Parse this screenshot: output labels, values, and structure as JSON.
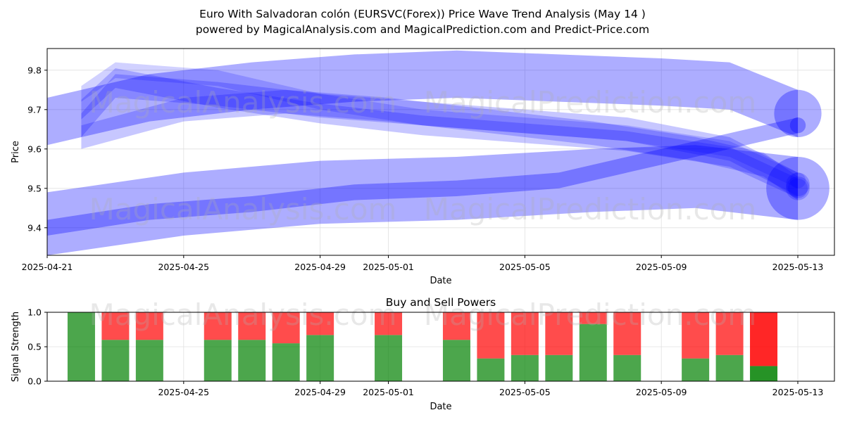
{
  "header": {
    "title_line1": "Euro With Salvadoran colón (EURSVC(Forex)) Price Wave Trend Analysis (May 14 )",
    "title_line2": "powered by MagicalAnalysis.com and MagicalPrediction.com and Predict-Price.com"
  },
  "watermarks": [
    "MagicalAnalysis.com",
    "MagicalPrediction.com"
  ],
  "colors": {
    "wave": "#0000ff",
    "buy": "#008000",
    "sell": "#ff0000",
    "grid": "#e0e0e0"
  },
  "chart_data": [
    {
      "type": "area",
      "title": "",
      "xlabel": "Date",
      "ylabel": "Price",
      "x_ticks": [
        "2025-04-21",
        "2025-04-25",
        "2025-04-29",
        "2025-05-01",
        "2025-05-05",
        "2025-05-09",
        "2025-05-13"
      ],
      "y_ticks": [
        "9.4",
        "9.5",
        "9.6",
        "9.7",
        "9.8"
      ],
      "xlim": [
        "2025-04-21",
        "2025-05-13"
      ],
      "ylim": [
        9.33,
        9.855
      ],
      "grid": true,
      "series": [
        {
          "x": [
            "2025-04-21",
            "2025-04-24",
            "2025-04-27",
            "2025-04-30",
            "2025-05-03",
            "2025-05-06",
            "2025-05-09",
            "2025-05-11",
            "2025-05-13"
          ],
          "center": [
            9.67,
            9.73,
            9.76,
            9.78,
            9.79,
            9.78,
            9.77,
            9.76,
            9.69
          ],
          "band": 0.06
        },
        {
          "x": [
            "2025-04-21",
            "2025-04-24",
            "2025-04-27",
            "2025-04-30",
            "2025-05-03",
            "2025-05-06",
            "2025-05-09",
            "2025-05-11",
            "2025-05-13"
          ],
          "center": [
            9.4,
            9.44,
            9.46,
            9.49,
            9.5,
            9.52,
            9.58,
            9.62,
            9.66
          ],
          "band": 0.02
        },
        {
          "x": [
            "2025-04-21",
            "2025-04-25",
            "2025-04-29",
            "2025-05-03",
            "2025-05-07",
            "2025-05-10",
            "2025-05-13"
          ],
          "center": [
            9.41,
            9.46,
            9.49,
            9.5,
            9.52,
            9.53,
            9.5
          ],
          "band": 0.08
        },
        {
          "x": [
            "2025-04-22",
            "2025-04-23",
            "2025-04-26",
            "2025-04-29",
            "2025-05-02",
            "2025-05-05",
            "2025-05-08",
            "2025-05-11",
            "2025-05-13"
          ],
          "center": [
            9.66,
            9.76,
            9.74,
            9.71,
            9.69,
            9.67,
            9.65,
            9.6,
            9.51
          ],
          "band": 0.03
        },
        {
          "x": [
            "2025-04-22",
            "2025-04-23",
            "2025-04-26",
            "2025-04-29",
            "2025-05-02",
            "2025-05-05",
            "2025-05-08",
            "2025-05-11",
            "2025-05-13"
          ],
          "center": [
            9.7,
            9.78,
            9.73,
            9.69,
            9.66,
            9.64,
            9.62,
            9.58,
            9.5
          ],
          "band": 0.025
        },
        {
          "x": [
            "2025-04-22",
            "2025-04-23",
            "2025-04-26",
            "2025-04-29",
            "2025-05-02",
            "2025-05-05",
            "2025-05-08",
            "2025-05-11",
            "2025-05-13"
          ],
          "center": [
            9.74,
            9.8,
            9.78,
            9.72,
            9.68,
            9.66,
            9.64,
            9.6,
            9.52
          ],
          "band": 0.02
        },
        {
          "x": [
            "2025-04-22",
            "2025-04-25",
            "2025-04-28",
            "2025-05-01",
            "2025-05-04",
            "2025-05-07",
            "2025-05-10",
            "2025-05-12",
            "2025-05-13"
          ],
          "center": [
            9.63,
            9.7,
            9.72,
            9.7,
            9.67,
            9.64,
            9.6,
            9.56,
            9.5
          ],
          "band": 0.03
        }
      ]
    },
    {
      "type": "bar",
      "title": "Buy and Sell Powers",
      "xlabel": "Date",
      "ylabel": "Signal Strength",
      "x_ticks": [
        "2025-04-25",
        "2025-04-29",
        "2025-05-01",
        "2025-05-05",
        "2025-05-09",
        "2025-05-13"
      ],
      "y_ticks": [
        "0.0",
        "0.5",
        "1.0"
      ],
      "ylim": [
        0,
        1
      ],
      "categories": [
        "2025-04-22",
        "2025-04-23",
        "2025-04-24",
        "2025-04-26",
        "2025-04-27",
        "2025-04-28",
        "2025-04-29",
        "2025-05-01",
        "2025-05-03",
        "2025-05-04",
        "2025-05-05",
        "2025-05-06",
        "2025-05-07",
        "2025-05-08",
        "2025-05-10",
        "2025-05-11",
        "2025-05-12"
      ],
      "series": [
        {
          "name": "buy",
          "values": [
            1.0,
            0.6,
            0.6,
            0.6,
            0.6,
            0.55,
            0.67,
            0.67,
            0.6,
            0.33,
            0.38,
            0.38,
            0.83,
            0.38,
            0.33,
            0.38,
            0.22
          ]
        },
        {
          "name": "sell",
          "values": [
            0.0,
            0.4,
            0.4,
            0.4,
            0.4,
            0.45,
            0.33,
            0.33,
            0.4,
            0.67,
            0.62,
            0.62,
            0.17,
            0.62,
            0.67,
            0.62,
            0.78
          ]
        }
      ]
    }
  ]
}
